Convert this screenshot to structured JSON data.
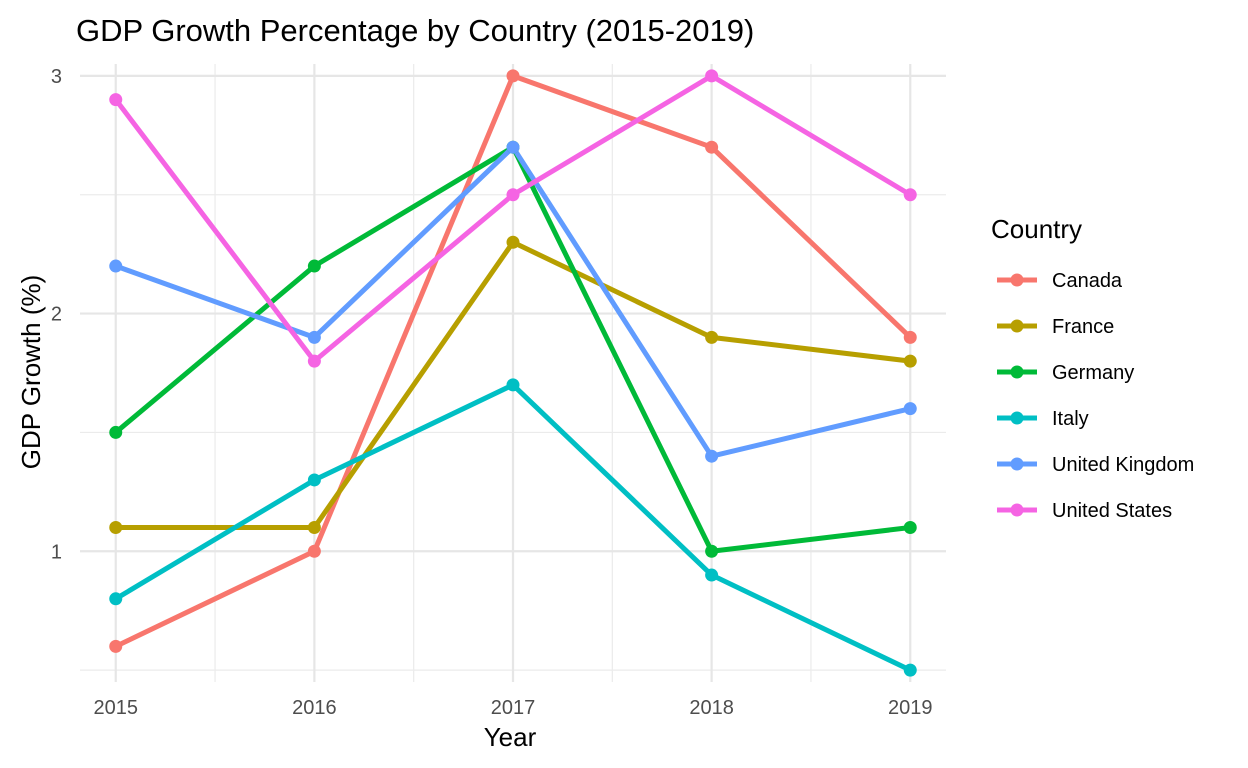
{
  "chart_data": {
    "type": "line",
    "title": "GDP Growth Percentage by Country (2015-2019)",
    "xlabel": "Year",
    "ylabel": "GDP Growth (%)",
    "x": [
      2015,
      2016,
      2017,
      2018,
      2019
    ],
    "x_tick_labels": [
      "2015",
      "2016",
      "2017",
      "2018",
      "2019"
    ],
    "y_ticks": [
      1,
      2,
      3
    ],
    "y_tick_labels": [
      "1",
      "2",
      "3"
    ],
    "xlim": [
      2014.82,
      2019.18
    ],
    "ylim": [
      0.45,
      3.05
    ],
    "grid": true,
    "legend": {
      "title": "Country",
      "placement": "right"
    },
    "series": [
      {
        "name": "Canada",
        "color": "#F8766D",
        "values": [
          0.6,
          1.0,
          3.0,
          2.7,
          1.9
        ]
      },
      {
        "name": "France",
        "color": "#B79F00",
        "values": [
          1.1,
          1.1,
          2.3,
          1.9,
          1.8
        ]
      },
      {
        "name": "Germany",
        "color": "#00BA38",
        "values": [
          1.5,
          2.2,
          2.7,
          1.0,
          1.1
        ]
      },
      {
        "name": "Italy",
        "color": "#00BFC4",
        "values": [
          0.8,
          1.3,
          1.7,
          0.9,
          0.5
        ]
      },
      {
        "name": "United Kingdom",
        "color": "#619CFF",
        "values": [
          2.2,
          1.9,
          2.7,
          1.4,
          1.6
        ]
      },
      {
        "name": "United States",
        "color": "#F564E3",
        "values": [
          2.9,
          1.8,
          2.5,
          3.0,
          2.5
        ]
      }
    ]
  }
}
